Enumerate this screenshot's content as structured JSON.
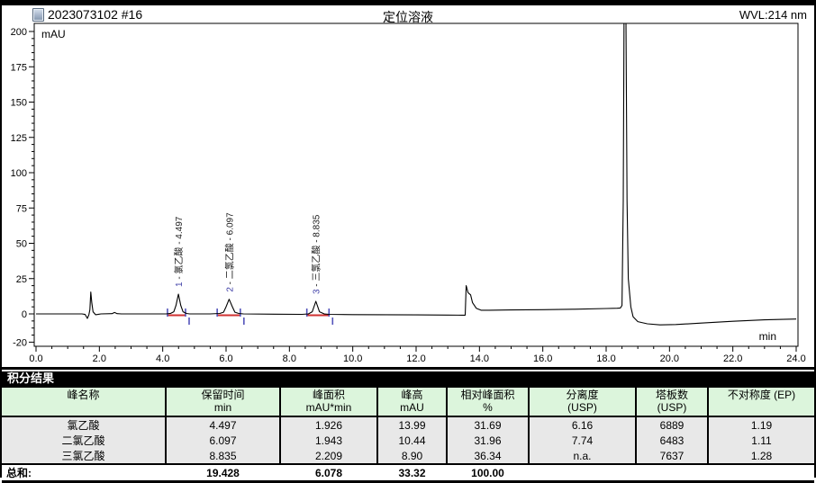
{
  "chart": {
    "sample_id": "2023073102 #16",
    "title": "定位溶液",
    "wavelength": "WVL:214 nm",
    "colors": {
      "trace": "#000000",
      "baseline_marker": "#d03030",
      "tick_marker": "#5353bb",
      "peak_number": "#4040a8",
      "label_text": "#1a1a1a"
    }
  },
  "chart_data": {
    "type": "line",
    "title": "定位溶液",
    "xlabel": "min",
    "ylabel": "mAU",
    "xlim": [
      0.0,
      24.0
    ],
    "ylim": [
      -20,
      200
    ],
    "grid": false,
    "x_ticks": [
      {
        "v": 0,
        "label": "0.0"
      },
      {
        "v": 2,
        "label": "2.0"
      },
      {
        "v": 4,
        "label": "4.0"
      },
      {
        "v": 6,
        "label": "6.0"
      },
      {
        "v": 8,
        "label": "8.0"
      },
      {
        "v": 10,
        "label": "10.0"
      },
      {
        "v": 12,
        "label": "12.0"
      },
      {
        "v": 14,
        "label": "14.0"
      },
      {
        "v": 16,
        "label": "16.0"
      },
      {
        "v": 18,
        "label": "18.0"
      },
      {
        "v": 20,
        "label": "20.0"
      },
      {
        "v": 22,
        "label": "22.0"
      },
      {
        "v": 24,
        "label": "24.0"
      }
    ],
    "y_ticks": [
      {
        "v": 200,
        "label": "200"
      },
      {
        "v": 175,
        "label": "175"
      },
      {
        "v": 150,
        "label": "150"
      },
      {
        "v": 125,
        "label": "125"
      },
      {
        "v": 100,
        "label": "100"
      },
      {
        "v": 75,
        "label": "75"
      },
      {
        "v": 50,
        "label": "50"
      },
      {
        "v": 25,
        "label": "25"
      },
      {
        "v": 0,
        "label": "0"
      },
      {
        "v": -20,
        "label": "-20"
      }
    ],
    "x_minor_step": 0.5,
    "y_minor_step": 5,
    "peaks": [
      {
        "number": "1",
        "name": "氯乙酸",
        "rt": 4.497,
        "height": 14.0,
        "start": 4.15,
        "end": 4.72,
        "label_rest": " - 氯乙酸 - 4.497"
      },
      {
        "number": "2",
        "name": "二氯乙酸",
        "rt": 6.097,
        "height": 10.4,
        "start": 5.72,
        "end": 6.45,
        "label_rest": " - 二氯乙酸 - 6.097"
      },
      {
        "number": "3",
        "name": "三氯乙酸",
        "rt": 8.835,
        "height": 8.9,
        "start": 8.55,
        "end": 9.25,
        "label_rest": " - 三氯乙酸 - 8.835"
      }
    ],
    "trace": [
      [
        0.0,
        0
      ],
      [
        0.5,
        0
      ],
      [
        1.0,
        0
      ],
      [
        1.45,
        0
      ],
      [
        1.55,
        -0.4
      ],
      [
        1.62,
        -3.2
      ],
      [
        1.67,
        -0.6
      ],
      [
        1.7,
        3.0
      ],
      [
        1.73,
        15.5
      ],
      [
        1.76,
        8.0
      ],
      [
        1.8,
        1.5
      ],
      [
        1.88,
        -0.6
      ],
      [
        1.95,
        -0.4
      ],
      [
        2.05,
        0
      ],
      [
        2.4,
        0.2
      ],
      [
        2.48,
        1.0
      ],
      [
        2.56,
        0.2
      ],
      [
        2.7,
        0
      ],
      [
        3.5,
        0
      ],
      [
        4.1,
        0
      ],
      [
        4.25,
        0.4
      ],
      [
        4.35,
        1.5
      ],
      [
        4.42,
        6.0
      ],
      [
        4.497,
        14.0
      ],
      [
        4.57,
        6.0
      ],
      [
        4.64,
        1.5
      ],
      [
        4.75,
        0.3
      ],
      [
        4.85,
        0
      ],
      [
        5.5,
        0
      ],
      [
        5.8,
        0.3
      ],
      [
        5.92,
        1.2
      ],
      [
        6.0,
        5.0
      ],
      [
        6.097,
        10.4
      ],
      [
        6.2,
        5.0
      ],
      [
        6.28,
        1.2
      ],
      [
        6.4,
        0.3
      ],
      [
        6.55,
        0
      ],
      [
        7.5,
        -0.2
      ],
      [
        8.4,
        -0.3
      ],
      [
        8.6,
        0
      ],
      [
        8.72,
        1.5
      ],
      [
        8.835,
        8.9
      ],
      [
        8.95,
        1.5
      ],
      [
        9.1,
        0
      ],
      [
        9.25,
        -0.3
      ],
      [
        10.0,
        -0.5
      ],
      [
        11.0,
        -0.6
      ],
      [
        12.0,
        -0.7
      ],
      [
        13.0,
        -0.8
      ],
      [
        13.45,
        -0.9
      ],
      [
        13.55,
        -0.9
      ],
      [
        13.58,
        20.0
      ],
      [
        13.64,
        15.0
      ],
      [
        13.72,
        13.5
      ],
      [
        13.78,
        8.0
      ],
      [
        13.9,
        4.0
      ],
      [
        14.05,
        2.6
      ],
      [
        14.3,
        2.6
      ],
      [
        15.0,
        2.8
      ],
      [
        16.0,
        3.0
      ],
      [
        17.0,
        3.3
      ],
      [
        18.0,
        3.8
      ],
      [
        18.35,
        4.0
      ],
      [
        18.45,
        4.2
      ],
      [
        18.5,
        6.0
      ],
      [
        18.54,
        80.0
      ],
      [
        18.57,
        230.0
      ],
      [
        18.62,
        230.0
      ],
      [
        18.66,
        80.0
      ],
      [
        18.7,
        25.0
      ],
      [
        18.78,
        5.0
      ],
      [
        18.85,
        -2.0
      ],
      [
        19.0,
        -5.5
      ],
      [
        19.3,
        -7.0
      ],
      [
        19.7,
        -7.8
      ],
      [
        20.2,
        -7.5
      ],
      [
        21.0,
        -6.5
      ],
      [
        22.0,
        -5.2
      ],
      [
        23.0,
        -4.2
      ],
      [
        24.0,
        -3.6
      ]
    ]
  },
  "results": {
    "section_title": "积分结果",
    "columns": [
      {
        "name": "峰名称",
        "unit": ""
      },
      {
        "name": "保留时间",
        "unit": "min"
      },
      {
        "name": "峰面积",
        "unit": "mAU*min"
      },
      {
        "name": "峰高",
        "unit": "mAU"
      },
      {
        "name": "相对峰面积",
        "unit": "%"
      },
      {
        "name": "分离度",
        "unit": "(USP)"
      },
      {
        "name": "塔板数",
        "unit": "(USP)"
      },
      {
        "name": "不对称度 (EP)",
        "unit": ""
      }
    ],
    "rows": [
      {
        "name": "氯乙酸",
        "rt": "4.497",
        "area": "1.926",
        "height": "13.99",
        "rel_area": "31.69",
        "resolution": "6.16",
        "plates": "6889",
        "asymmetry": "1.19"
      },
      {
        "name": "二氯乙酸",
        "rt": "6.097",
        "area": "1.943",
        "height": "10.44",
        "rel_area": "31.96",
        "resolution": "7.74",
        "plates": "6483",
        "asymmetry": "1.11"
      },
      {
        "name": "三氯乙酸",
        "rt": "8.835",
        "area": "2.209",
        "height": "8.90",
        "rel_area": "36.34",
        "resolution": "n.a.",
        "plates": "7637",
        "asymmetry": "1.28"
      }
    ],
    "total": {
      "label": "总和:",
      "rt": "19.428",
      "area": "6.078",
      "height": "33.32",
      "rel_area": "100.00",
      "resolution": "",
      "plates": "",
      "asymmetry": ""
    }
  }
}
